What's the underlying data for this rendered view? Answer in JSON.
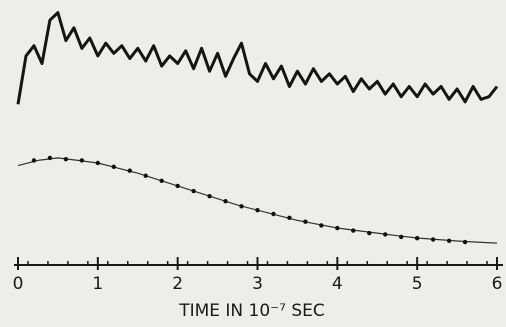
{
  "chart_data": {
    "type": "line",
    "xlabel": "TIME IN 10⁻⁷ SEC",
    "xlim": [
      0,
      6
    ],
    "xticks": [
      0,
      1,
      2,
      3,
      4,
      5,
      6
    ],
    "ylim": [
      0,
      10
    ],
    "series": [
      {
        "style": "line",
        "color": "#151515",
        "width": 3,
        "x": [
          0,
          0.1,
          0.2,
          0.3,
          0.4,
          0.5,
          0.6,
          0.7,
          0.8,
          0.9,
          1.0,
          1.1,
          1.2,
          1.3,
          1.4,
          1.5,
          1.6,
          1.7,
          1.8,
          1.9,
          2.0,
          2.1,
          2.2,
          2.3,
          2.4,
          2.5,
          2.6,
          2.7,
          2.8,
          2.9,
          3.0,
          3.1,
          3.2,
          3.3,
          3.4,
          3.5,
          3.6,
          3.7,
          3.8,
          3.9,
          4.0,
          4.1,
          4.2,
          4.3,
          4.4,
          4.5,
          4.6,
          4.7,
          4.8,
          4.9,
          5.0,
          5.1,
          5.2,
          5.3,
          5.4,
          5.5,
          5.6,
          5.7,
          5.8,
          5.9,
          6.0
        ],
        "values": [
          6.3,
          8.2,
          8.6,
          7.9,
          9.6,
          9.9,
          8.8,
          9.3,
          8.5,
          8.9,
          8.2,
          8.7,
          8.3,
          8.6,
          8.1,
          8.5,
          8.0,
          8.6,
          7.8,
          8.2,
          7.9,
          8.4,
          7.7,
          8.5,
          7.6,
          8.3,
          7.4,
          8.1,
          8.7,
          7.5,
          7.2,
          7.9,
          7.3,
          7.8,
          7.0,
          7.6,
          7.1,
          7.7,
          7.2,
          7.5,
          7.1,
          7.4,
          6.8,
          7.3,
          6.9,
          7.2,
          6.7,
          7.1,
          6.6,
          7.0,
          6.6,
          7.1,
          6.7,
          7.0,
          6.5,
          6.9,
          6.4,
          7.0,
          6.5,
          6.6,
          7.0
        ]
      },
      {
        "style": "line",
        "color": "#333333",
        "width": 1.2,
        "x": [
          0,
          0.25,
          0.5,
          0.75,
          1,
          1.25,
          1.5,
          1.75,
          2,
          2.25,
          2.5,
          2.75,
          3,
          3.25,
          3.5,
          3.75,
          4,
          4.25,
          4.5,
          4.75,
          5,
          5.25,
          5.5,
          5.75,
          6
        ],
        "values": [
          3.9,
          4.1,
          4.2,
          4.1,
          4.0,
          3.8,
          3.6,
          3.35,
          3.1,
          2.85,
          2.6,
          2.35,
          2.15,
          1.95,
          1.75,
          1.6,
          1.45,
          1.35,
          1.25,
          1.15,
          1.06,
          1.0,
          0.94,
          0.9,
          0.86
        ]
      },
      {
        "style": "points",
        "color": "#111111",
        "width": 2.2,
        "x": [
          0.2,
          0.4,
          0.6,
          0.8,
          1.0,
          1.2,
          1.4,
          1.6,
          1.8,
          2.0,
          2.2,
          2.4,
          2.6,
          2.8,
          3.0,
          3.2,
          3.4,
          3.6,
          3.8,
          4.0,
          4.2,
          4.4,
          4.6,
          4.8,
          5.0,
          5.2,
          5.4,
          5.6
        ],
        "values": [
          4.1,
          4.2,
          4.15,
          4.1,
          4.0,
          3.85,
          3.7,
          3.5,
          3.3,
          3.1,
          2.9,
          2.7,
          2.5,
          2.3,
          2.15,
          2.0,
          1.85,
          1.7,
          1.55,
          1.45,
          1.35,
          1.25,
          1.2,
          1.1,
          1.05,
          1.0,
          0.95,
          0.9
        ]
      }
    ]
  }
}
